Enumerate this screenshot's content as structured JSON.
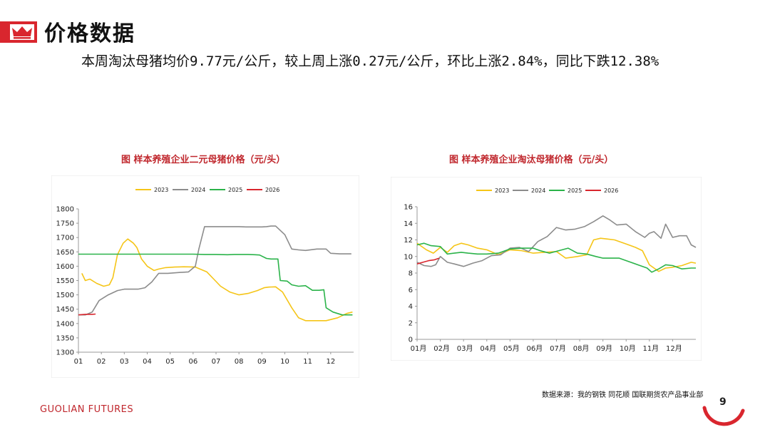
{
  "page": {
    "title": "价格数据",
    "summary": "本周淘汰母猪均价9.77元/公斤，较上周上涨0.27元/公斤，环比上涨2.84%，同比下跌12.38%",
    "source": "数据来源：我的钢铁 同花顺 国联期货农产品事业部",
    "brand": "GUOLIAN FUTURES",
    "page_number": "9",
    "accent_color": "#d9262e"
  },
  "chart_data": [
    {
      "type": "line",
      "title": "图   样本养殖企业二元母猪价格（元/头）",
      "x_ticks": [
        "01",
        "02",
        "03",
        "04",
        "05",
        "06",
        "07",
        "08",
        "09",
        "10",
        "11",
        "12"
      ],
      "ylim": [
        1300,
        1800
      ],
      "y_ticks": [
        1300,
        1350,
        1400,
        1450,
        1500,
        1550,
        1600,
        1650,
        1700,
        1750,
        1800
      ],
      "legend_position": "top",
      "grid": false,
      "series": [
        {
          "name": "2023",
          "color": "#f5c518",
          "x": [
            0.15,
            0.3,
            0.5,
            0.8,
            1.1,
            1.35,
            1.5,
            1.7,
            1.95,
            2.15,
            2.4,
            2.55,
            2.75,
            3.0,
            3.3,
            3.5,
            3.8,
            4.2,
            4.6,
            5.1,
            5.6,
            5.9,
            6.2,
            6.6,
            7.0,
            7.4,
            7.8,
            8.1,
            8.3,
            8.6,
            8.9,
            9.3,
            9.6,
            9.9,
            10.3,
            10.8,
            11.3,
            11.7,
            11.95
          ],
          "y": [
            1575,
            1550,
            1555,
            1540,
            1530,
            1535,
            1560,
            1640,
            1680,
            1695,
            1680,
            1665,
            1625,
            1600,
            1585,
            1590,
            1595,
            1597,
            1598,
            1597,
            1580,
            1555,
            1530,
            1510,
            1500,
            1505,
            1515,
            1525,
            1527,
            1528,
            1510,
            1455,
            1420,
            1410,
            1410,
            1410,
            1420,
            1435,
            1440
          ]
        },
        {
          "name": "2024",
          "color": "#8c8c8c",
          "x": [
            0.0,
            0.3,
            0.6,
            0.9,
            1.3,
            1.7,
            2.0,
            2.3,
            2.6,
            2.9,
            3.2,
            3.5,
            3.9,
            4.4,
            4.8,
            5.1,
            5.25,
            5.5,
            6.0,
            6.5,
            7.0,
            7.3,
            7.6,
            8.0,
            8.2,
            8.4,
            8.6,
            9.0,
            9.3,
            9.6,
            9.9,
            10.4,
            10.8,
            11.0,
            11.4,
            11.9
          ],
          "y": [
            1430,
            1430,
            1440,
            1480,
            1500,
            1515,
            1520,
            1520,
            1520,
            1525,
            1545,
            1575,
            1575,
            1578,
            1580,
            1600,
            1660,
            1738,
            1738,
            1738,
            1738,
            1737,
            1737,
            1737,
            1738,
            1740,
            1740,
            1710,
            1660,
            1657,
            1655,
            1660,
            1660,
            1645,
            1643,
            1643
          ]
        },
        {
          "name": "2025",
          "color": "#2bb34a",
          "x": [
            0.0,
            1.0,
            2.0,
            3.0,
            4.0,
            5.0,
            5.5,
            6.0,
            6.5,
            6.8,
            7.0,
            7.4,
            7.7,
            7.9,
            8.2,
            8.4,
            8.7,
            8.8,
            9.1,
            9.3,
            9.6,
            9.9,
            10.2,
            10.5,
            10.7,
            10.8,
            11.1,
            11.5,
            11.95
          ],
          "y": [
            1642,
            1642,
            1642,
            1642,
            1642,
            1642,
            1641,
            1641,
            1640,
            1641,
            1641,
            1641,
            1640,
            1639,
            1627,
            1625,
            1625,
            1550,
            1548,
            1535,
            1530,
            1532,
            1516,
            1516,
            1518,
            1455,
            1440,
            1430,
            1430
          ]
        },
        {
          "name": "2026",
          "color": "#d9262e",
          "x": [
            0.0,
            0.3,
            0.6,
            0.75
          ],
          "y": [
            1430,
            1432,
            1432,
            1433
          ]
        }
      ]
    },
    {
      "type": "line",
      "title": "图 样本养殖企业淘汰母猪价格（元/头）",
      "x_ticks": [
        "01月",
        "02月",
        "03月",
        "04月",
        "05月",
        "06月",
        "07月",
        "08月",
        "09月",
        "10月",
        "11月",
        "12月"
      ],
      "ylim": [
        0,
        16
      ],
      "y_ticks": [
        0,
        2,
        4,
        6,
        8,
        10,
        12,
        14,
        16
      ],
      "legend_position": "top",
      "grid": false,
      "series": [
        {
          "name": "2023",
          "color": "#f5c518",
          "x": [
            0.0,
            0.4,
            0.7,
            1.0,
            1.3,
            1.6,
            1.9,
            2.2,
            2.6,
            3.0,
            3.5,
            4.0,
            4.5,
            5.0,
            5.5,
            6.0,
            6.4,
            6.9,
            7.3,
            7.6,
            7.9,
            8.2,
            8.5,
            9.0,
            9.4,
            9.7,
            10.0,
            10.4,
            10.7,
            11.0,
            11.4,
            11.8,
            12.0
          ],
          "y": [
            11.6,
            10.8,
            10.4,
            11.1,
            10.5,
            11.3,
            11.6,
            11.4,
            11.0,
            10.8,
            10.2,
            10.8,
            10.7,
            10.4,
            10.5,
            10.6,
            9.8,
            10.0,
            10.2,
            12.0,
            12.2,
            12.1,
            12.0,
            11.5,
            11.1,
            10.7,
            9.0,
            8.2,
            8.6,
            8.7,
            8.9,
            9.3,
            9.2
          ]
        },
        {
          "name": "2024",
          "color": "#8c8c8c",
          "x": [
            0.0,
            0.3,
            0.6,
            0.8,
            1.0,
            1.3,
            1.6,
            2.0,
            2.4,
            2.8,
            3.2,
            3.6,
            4.0,
            4.4,
            4.8,
            5.2,
            5.6,
            6.0,
            6.4,
            6.8,
            7.2,
            7.6,
            8.0,
            8.3,
            8.6,
            9.0,
            9.4,
            9.8,
            10.0,
            10.2,
            10.5,
            10.7,
            11.0,
            11.3,
            11.6,
            11.8,
            12.0
          ],
          "y": [
            9.3,
            8.9,
            8.8,
            9.0,
            10.0,
            9.3,
            9.1,
            8.8,
            9.2,
            9.5,
            10.1,
            10.2,
            11.0,
            11.1,
            10.6,
            11.8,
            12.4,
            13.5,
            13.2,
            13.3,
            13.6,
            14.2,
            14.9,
            14.4,
            13.8,
            13.9,
            13.0,
            12.3,
            12.8,
            13.0,
            12.2,
            13.9,
            12.3,
            12.5,
            12.5,
            11.4,
            11.1
          ]
        },
        {
          "name": "2025",
          "color": "#2bb34a",
          "x": [
            0.0,
            0.3,
            0.6,
            1.0,
            1.3,
            1.6,
            1.9,
            2.2,
            2.6,
            3.0,
            3.5,
            4.0,
            4.5,
            5.0,
            5.3,
            5.7,
            6.1,
            6.5,
            6.9,
            7.3,
            7.7,
            8.0,
            8.3,
            8.7,
            9.1,
            9.5,
            9.9,
            10.1,
            10.4,
            10.7,
            11.0,
            11.4,
            11.8,
            12.0
          ],
          "y": [
            11.4,
            11.6,
            11.3,
            11.2,
            10.3,
            10.4,
            10.5,
            10.4,
            10.3,
            10.3,
            10.4,
            10.9,
            11.0,
            11.0,
            10.7,
            10.4,
            10.7,
            11.0,
            10.4,
            10.3,
            10.0,
            9.8,
            9.8,
            9.8,
            9.4,
            9.0,
            8.6,
            8.1,
            8.5,
            9.0,
            8.9,
            8.5,
            8.6,
            8.6
          ]
        },
        {
          "name": "2026",
          "color": "#d9262e",
          "x": [
            0.0,
            0.25,
            0.5,
            0.75,
            0.95
          ],
          "y": [
            9.1,
            9.3,
            9.5,
            9.6,
            9.8
          ]
        }
      ]
    }
  ]
}
